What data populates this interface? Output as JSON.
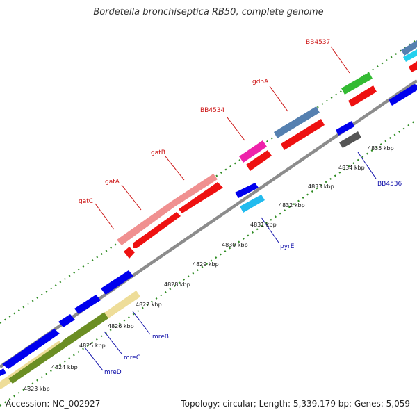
{
  "title": "Bordetella bronchiseptica RB50, complete genome",
  "footer": {
    "accession": "Accession: NC_002927",
    "summary": "Topology: circular; Length: 5,339,179 bp; Genes: 5,059"
  },
  "colors": {
    "backbone": "#8c8c8c",
    "ticks": "#2e8b22",
    "label_red": "#cc1111",
    "label_blue": "#1010aa"
  },
  "scale_labels": [
    "4823 kbp",
    "4824 kbp",
    "4825 kbp",
    "4826 kbp",
    "4827 kbp",
    "4828 kbp",
    "4829 kbp",
    "4830 kbp",
    "4831 kbp",
    "4832 kbp",
    "4833 kbp",
    "4834 kbp",
    "4835 kbp"
  ],
  "gene_labels": {
    "gatC": "gatC",
    "gatA": "gatA",
    "gatB": "gatB",
    "BB4534": "BB4534",
    "gdhA": "gdhA",
    "BB4537": "BB4537",
    "BB4536": "BB4536",
    "pyrE": "pyrE",
    "mreB": "mreB",
    "mreC": "mreC",
    "mreD": "mreD"
  }
}
